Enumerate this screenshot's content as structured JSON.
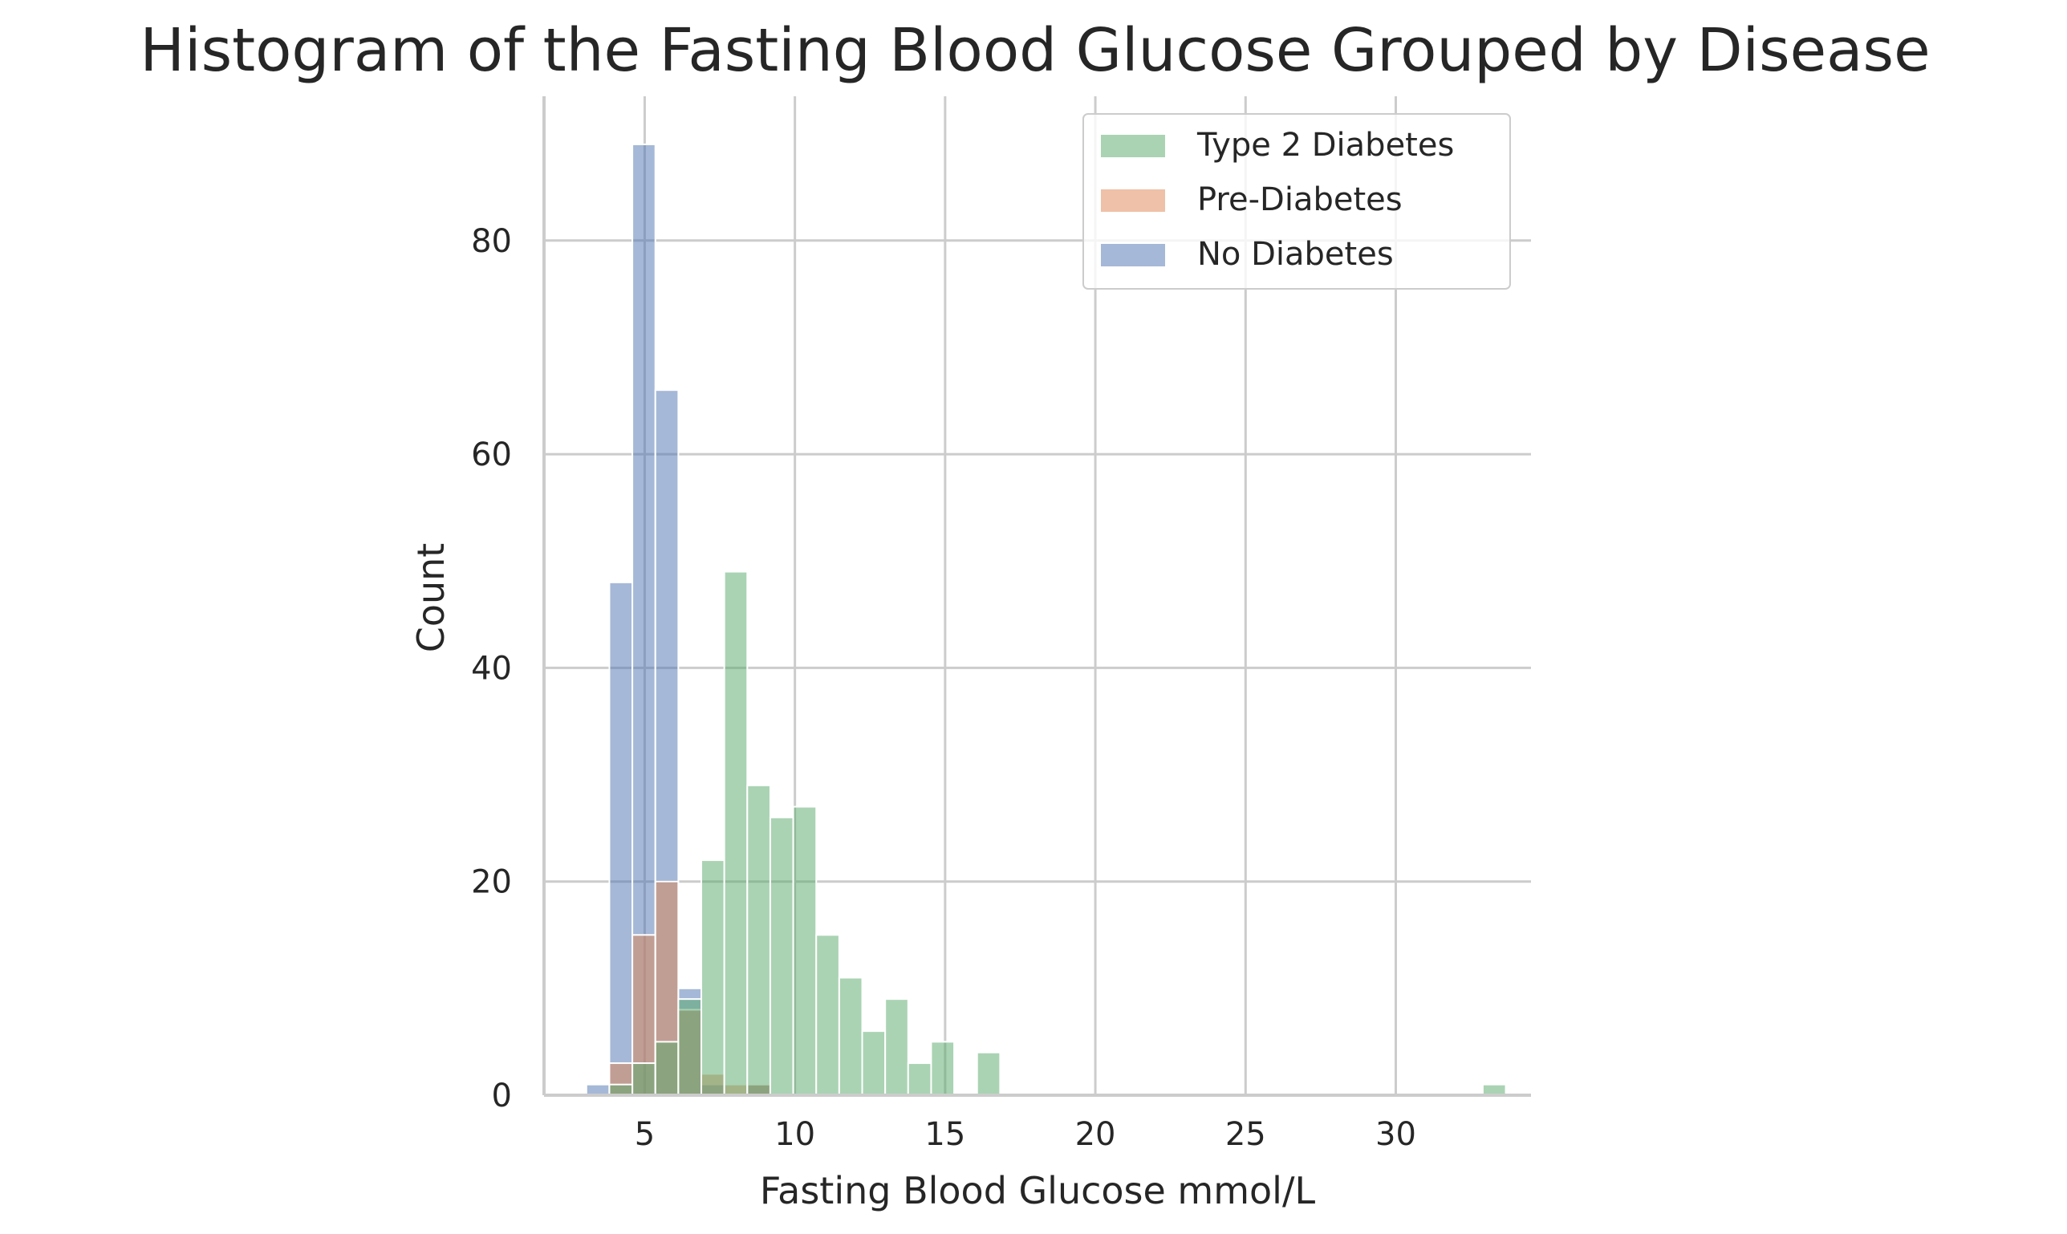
{
  "chart_data": {
    "type": "histogram",
    "title": "Histogram of the Fasting Blood Glucose Grouped by Disease",
    "xlabel": "Fasting Blood Glucose mmol/L",
    "ylabel": "Count",
    "xlim": [
      1.65,
      34.5
    ],
    "ylim": [
      0,
      93.5
    ],
    "xticks": [
      5,
      10,
      15,
      20,
      25,
      30
    ],
    "yticks": [
      0,
      20,
      40,
      60,
      80
    ],
    "grid": true,
    "legend_position": "top-right",
    "bin_start": 3.06,
    "bin_width": 0.765,
    "bin_count": 40,
    "series": [
      {
        "name": "Type 2 Diabetes",
        "color": "#55a868",
        "counts": [
          0,
          1,
          3,
          5,
          9,
          22,
          49,
          29,
          26,
          27,
          15,
          11,
          6,
          9,
          3,
          5,
          0,
          4,
          0,
          0,
          0,
          0,
          0,
          0,
          0,
          0,
          0,
          0,
          0,
          0,
          0,
          0,
          0,
          0,
          0,
          0,
          0,
          0,
          0,
          1
        ]
      },
      {
        "name": "Pre-Diabetes",
        "color": "#dd8452",
        "counts": [
          0,
          3,
          15,
          20,
          8,
          2,
          1,
          1,
          0,
          0,
          0,
          0,
          0,
          0,
          0,
          0,
          0,
          0,
          0,
          0,
          0,
          0,
          0,
          0,
          0,
          0,
          0,
          0,
          0,
          0,
          0,
          0,
          0,
          0,
          0,
          0,
          0,
          0,
          0,
          0
        ]
      },
      {
        "name": "No Diabetes",
        "color": "#4c72b0",
        "counts": [
          1,
          48,
          89,
          66,
          10,
          1,
          0,
          1,
          0,
          0,
          0,
          0,
          0,
          0,
          0,
          0,
          0,
          0,
          0,
          0,
          0,
          0,
          0,
          0,
          0,
          0,
          0,
          0,
          0,
          0,
          0,
          0,
          0,
          0,
          0,
          0,
          0,
          0,
          0,
          0
        ]
      }
    ]
  }
}
